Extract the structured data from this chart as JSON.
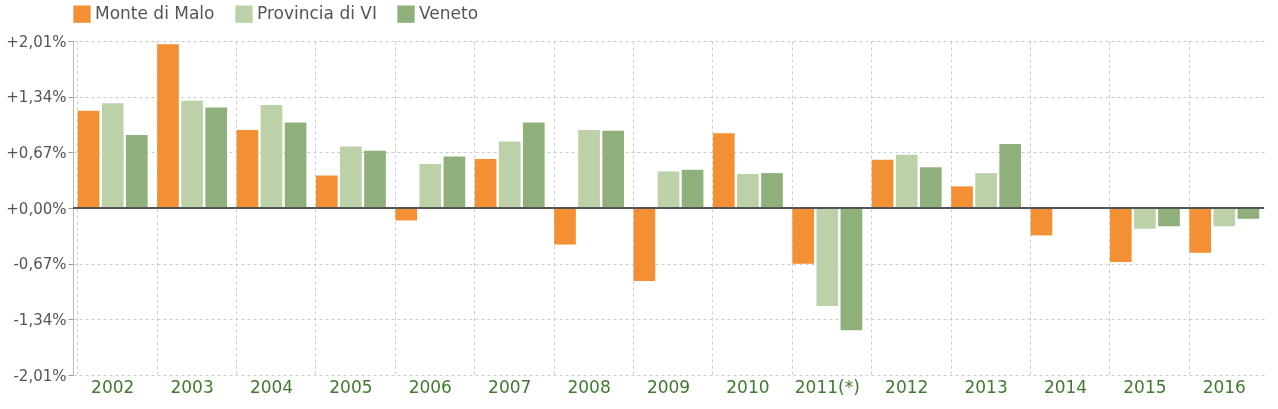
{
  "chart_data": {
    "type": "bar",
    "categories": [
      "2002",
      "2003",
      "2004",
      "2005",
      "2006",
      "2007",
      "2008",
      "2009",
      "2010",
      "2011(*)",
      "2012",
      "2013",
      "2014",
      "2015",
      "2016"
    ],
    "series": [
      {
        "name": "Monte di Malo",
        "color": "#f39033",
        "values": [
          1.17,
          1.97,
          0.94,
          0.39,
          -0.15,
          0.59,
          -0.44,
          -0.88,
          0.9,
          -0.67,
          0.58,
          0.26,
          -0.33,
          -0.65,
          -0.54
        ]
      },
      {
        "name": "Provincia di VI",
        "color": "#bdd1a8",
        "values": [
          1.26,
          1.29,
          1.24,
          0.74,
          0.53,
          0.8,
          0.94,
          0.44,
          0.41,
          -1.18,
          0.64,
          0.42,
          null,
          -0.25,
          -0.22
        ]
      },
      {
        "name": "Veneto",
        "color": "#8fb07a",
        "values": [
          0.88,
          1.21,
          1.03,
          0.69,
          0.62,
          1.03,
          0.93,
          0.46,
          0.42,
          -1.47,
          0.49,
          0.77,
          null,
          -0.22,
          -0.13
        ]
      }
    ],
    "ylim": [
      -2.01,
      2.01
    ],
    "yticks": [
      {
        "value": 2.01,
        "label": "+2,01%"
      },
      {
        "value": 1.34,
        "label": "+1,34%"
      },
      {
        "value": 0.67,
        "label": "+0,67%"
      },
      {
        "value": 0,
        "label": "+0,00%"
      },
      {
        "value": -0.67,
        "label": "-0,67%"
      },
      {
        "value": -1.34,
        "label": "-1,34%"
      },
      {
        "value": -2.01,
        "label": "-2,01%"
      }
    ],
    "ref_lines": [
      {
        "axis": "y",
        "value": 0,
        "color": "#555555"
      }
    ],
    "grid": true,
    "legend": "top"
  }
}
